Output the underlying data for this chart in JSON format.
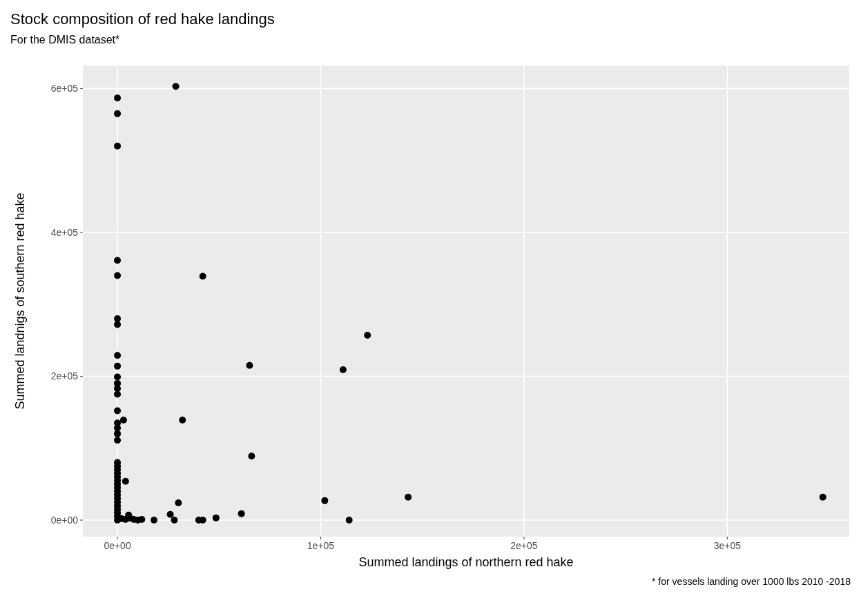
{
  "chart_data": {
    "type": "scatter",
    "title": "Stock composition of red hake landings",
    "subtitle": "For the DMIS dataset*",
    "xlabel": "Summed landings of northern red hake",
    "ylabel": "Summed landnigs of southern red hake",
    "annotations": [
      "* for vessels landing over 1000 lbs 2010 -2018"
    ],
    "xlim": [
      -17000,
      360000
    ],
    "ylim": [
      -23000,
      632000
    ],
    "xticks": [
      {
        "value": 0,
        "label": "0e+00"
      },
      {
        "value": 100000,
        "label": "1e+05"
      },
      {
        "value": 200000,
        "label": "2e+05"
      },
      {
        "value": 300000,
        "label": "3e+05"
      }
    ],
    "yticks": [
      {
        "value": 0,
        "label": "0e+00"
      },
      {
        "value": 200000,
        "label": "2e+05"
      },
      {
        "value": 400000,
        "label": "4e+05"
      },
      {
        "value": 600000,
        "label": "6e+05"
      }
    ],
    "grid": true,
    "marker": "circle",
    "series": [
      {
        "color": "#000000",
        "x": [
          28700,
          0,
          0,
          0,
          0,
          0,
          42000,
          0,
          0,
          123000,
          0,
          0,
          0,
          0,
          0,
          0,
          65000,
          111000,
          0,
          3000,
          32000,
          0,
          0,
          0,
          0,
          66000,
          0,
          0,
          0,
          0,
          0,
          0,
          0,
          0,
          0,
          0,
          0,
          0,
          0,
          0,
          0,
          0,
          0,
          4000,
          30000,
          102000,
          143000,
          347000,
          61000,
          26000,
          28000,
          18000,
          40000,
          42000,
          48500,
          5500,
          2000,
          4000,
          6000,
          8000,
          10000,
          12000,
          114000
        ],
        "values": [
          603000,
          587000,
          565000,
          520000,
          361000,
          340000,
          339000,
          280000,
          272000,
          257000,
          229000,
          214000,
          199000,
          190000,
          183000,
          175000,
          215000,
          209000,
          152000,
          139000,
          139000,
          135000,
          128000,
          120000,
          111000,
          89000,
          80000,
          75000,
          70000,
          65000,
          60000,
          55000,
          50000,
          45000,
          40000,
          35000,
          30000,
          25000,
          20000,
          15000,
          10000,
          5000,
          0,
          54000,
          24000,
          27000,
          32000,
          32000,
          9000,
          8000,
          0,
          0,
          0,
          0,
          3000,
          7000,
          2000,
          1000,
          3000,
          1000,
          0,
          1000,
          0
        ]
      }
    ]
  }
}
